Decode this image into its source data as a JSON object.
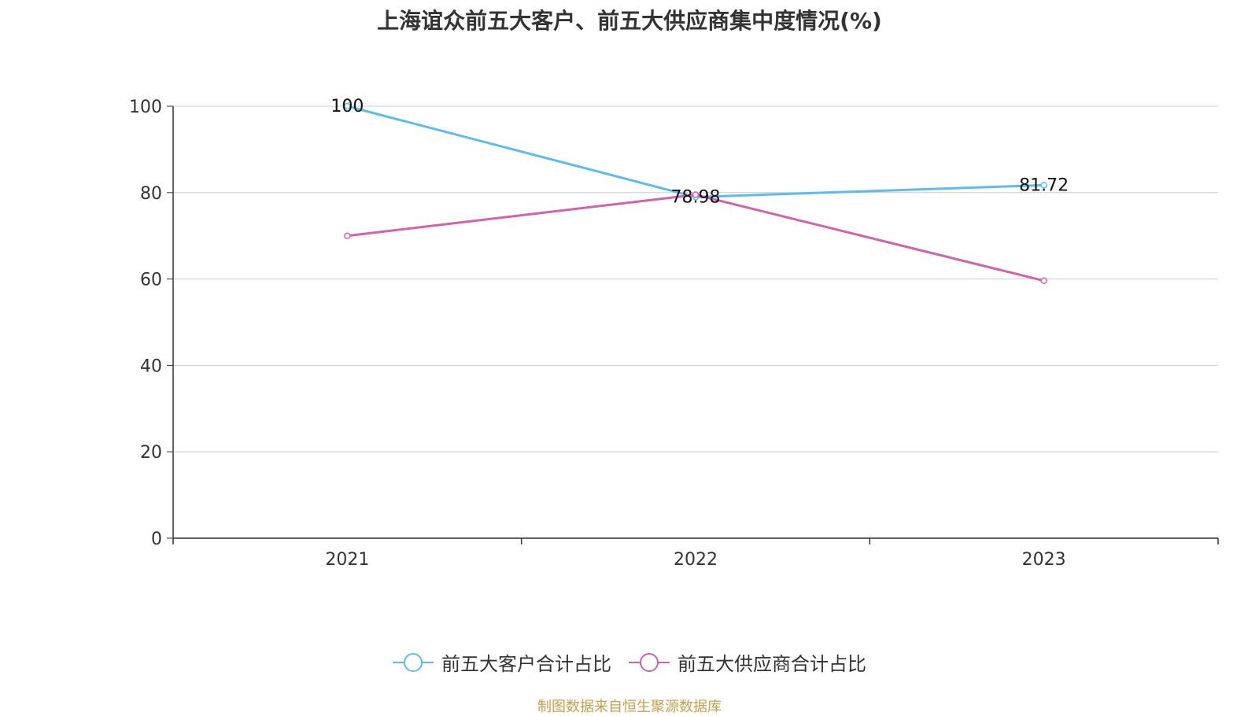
{
  "title": "上海谊众前五大客户、前五大供应商集中度情况(%)",
  "source": "制图数据来自恒生聚源数据库",
  "colors": {
    "customers": "#5bbcef",
    "suppliers": "#d162ab",
    "grid": "#cccccc",
    "axis": "#333333",
    "source": "#c8a04a"
  },
  "legend": {
    "customers_label": "前五大客户合计占比",
    "suppliers_label": "前五大供应商合计占比"
  },
  "chart_data": {
    "type": "line",
    "title": "上海谊众前五大客户、前五大供应商集中度情况(%)",
    "xlabel": "",
    "ylabel": "",
    "categories": [
      "2021",
      "2022",
      "2023"
    ],
    "ylim": [
      0,
      100
    ],
    "yticks": [
      "0",
      "20",
      "40",
      "60",
      "80",
      "100"
    ],
    "grid": true,
    "legend_position": "bottom",
    "series": [
      {
        "name": "前五大客户合计占比",
        "values": [
          100,
          78.98,
          81.72
        ],
        "labels": [
          "100",
          "78.98",
          "81.72"
        ]
      },
      {
        "name": "前五大供应商合计占比",
        "values": [
          70,
          79.5,
          59.6
        ],
        "labels": [
          "",
          "",
          ""
        ]
      }
    ]
  }
}
